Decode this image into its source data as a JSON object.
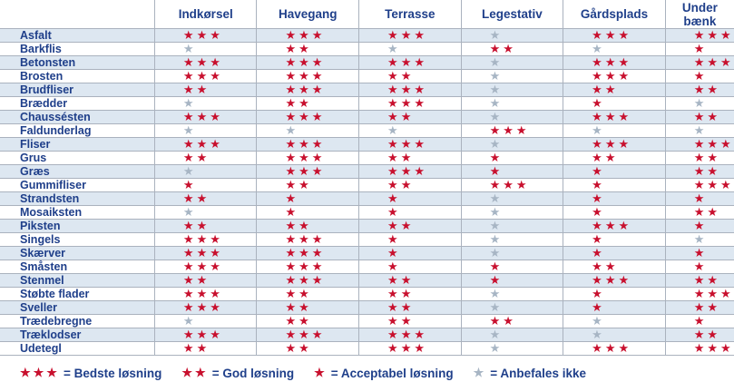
{
  "columns": [
    "Indkørsel",
    "Havegang",
    "Terrasse",
    "Legestativ",
    "Gårdsplads",
    "Under bænk"
  ],
  "rows": [
    {
      "material": "Asfalt",
      "ratings": [
        3,
        3,
        3,
        0,
        3,
        3
      ]
    },
    {
      "material": "Barkflis",
      "ratings": [
        0,
        2,
        0,
        2,
        0,
        1
      ]
    },
    {
      "material": "Betonsten",
      "ratings": [
        3,
        3,
        3,
        0,
        3,
        3
      ]
    },
    {
      "material": "Brosten",
      "ratings": [
        3,
        3,
        2,
        0,
        3,
        1
      ]
    },
    {
      "material": "Brudfliser",
      "ratings": [
        2,
        3,
        3,
        0,
        2,
        2
      ]
    },
    {
      "material": "Brædder",
      "ratings": [
        0,
        2,
        3,
        0,
        1,
        0
      ]
    },
    {
      "material": "Chaussésten",
      "ratings": [
        3,
        3,
        2,
        0,
        3,
        2
      ]
    },
    {
      "material": "Faldunderlag",
      "ratings": [
        0,
        0,
        0,
        3,
        0,
        0
      ]
    },
    {
      "material": "Fliser",
      "ratings": [
        3,
        3,
        3,
        0,
        3,
        3
      ]
    },
    {
      "material": "Grus",
      "ratings": [
        2,
        3,
        2,
        1,
        2,
        2
      ]
    },
    {
      "material": "Græs",
      "ratings": [
        0,
        3,
        3,
        1,
        1,
        2
      ]
    },
    {
      "material": "Gummifliser",
      "ratings": [
        1,
        2,
        2,
        3,
        1,
        3
      ]
    },
    {
      "material": "Strandsten",
      "ratings": [
        2,
        1,
        1,
        0,
        1,
        1
      ]
    },
    {
      "material": "Mosaiksten",
      "ratings": [
        0,
        1,
        1,
        0,
        1,
        2
      ]
    },
    {
      "material": "Piksten",
      "ratings": [
        2,
        2,
        2,
        0,
        3,
        1
      ]
    },
    {
      "material": "Singels",
      "ratings": [
        3,
        3,
        1,
        0,
        1,
        0
      ]
    },
    {
      "material": "Skærver",
      "ratings": [
        3,
        3,
        1,
        0,
        1,
        1
      ]
    },
    {
      "material": "Småsten",
      "ratings": [
        3,
        3,
        1,
        1,
        2,
        1
      ]
    },
    {
      "material": "Stenmel",
      "ratings": [
        2,
        3,
        2,
        1,
        3,
        2
      ]
    },
    {
      "material": "Støbte flader",
      "ratings": [
        3,
        2,
        2,
        0,
        1,
        3
      ]
    },
    {
      "material": "Sveller",
      "ratings": [
        3,
        2,
        2,
        0,
        1,
        2
      ]
    },
    {
      "material": "Trædebregne",
      "ratings": [
        0,
        2,
        2,
        2,
        0,
        1
      ]
    },
    {
      "material": "Træklodser",
      "ratings": [
        3,
        3,
        3,
        0,
        0,
        2
      ]
    },
    {
      "material": "Udetegl",
      "ratings": [
        2,
        2,
        3,
        0,
        3,
        3
      ]
    }
  ],
  "legend": [
    {
      "stars": 3,
      "label": "= Bedste løsning"
    },
    {
      "stars": 2,
      "label": "= God løsning"
    },
    {
      "stars": 1,
      "label": "= Acceptabel løsning"
    },
    {
      "stars": 0,
      "label": "= Anbefales ikke"
    }
  ],
  "colors": {
    "header_text": "#1f3f8a",
    "star_red": "#c8102e",
    "star_grey": "#a7b5c4",
    "row_stripe": "#dde7f1",
    "grid": "#aab2be"
  },
  "icons": {
    "rating_star": "star-icon"
  }
}
